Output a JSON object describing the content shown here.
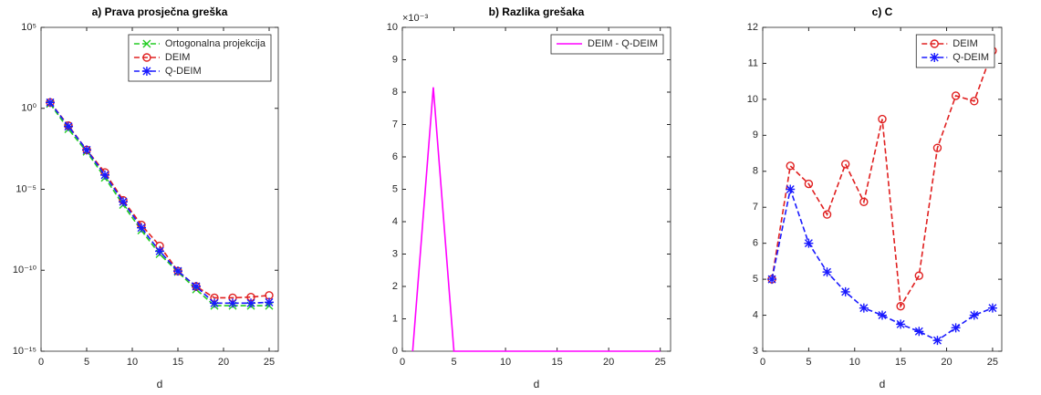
{
  "chart_data": [
    {
      "type": "line",
      "title": "a) Prava prosječna greška",
      "x_label": "d",
      "log_y": true,
      "legend": "upper right",
      "x": [
        1,
        3,
        5,
        7,
        9,
        11,
        13,
        15,
        17,
        19,
        21,
        23,
        25
      ],
      "xlim": [
        0,
        26
      ],
      "xticks": [
        0,
        5,
        10,
        15,
        20,
        25
      ],
      "ylim": [
        1e-15,
        100000.0
      ],
      "yticks": [
        {
          "value": 1e-15,
          "label": "10⁻¹⁵"
        },
        {
          "value": 1e-10,
          "label": "10⁻¹⁰"
        },
        {
          "value": 1e-05,
          "label": "10⁻⁵"
        },
        {
          "value": 1,
          "label": "10⁰"
        },
        {
          "value": 100000.0,
          "label": "10⁵"
        }
      ],
      "series": [
        {
          "name": "Ortogonalna projekcija",
          "color": "#22cc22",
          "marker": "x",
          "dashed": true,
          "values": [
            1.9,
            0.052,
            0.0021,
            5.2e-05,
            1.1e-06,
            2.9e-08,
            1e-09,
            7.9e-11,
            6.6e-12,
            6.5e-13,
            6.5e-13,
            6.5e-13,
            6.5e-13
          ]
        },
        {
          "name": "DEIM",
          "color": "#e02020",
          "marker": "o",
          "dashed": true,
          "values": [
            2.3,
            0.085,
            0.0027,
            0.00011,
            2.1e-06,
            6.3e-08,
            3.2e-09,
            8.9e-11,
            1e-11,
            2e-12,
            2e-12,
            2.2e-12,
            2.8e-12
          ]
        },
        {
          "name": "Q-DEIM",
          "color": "#1a1aff",
          "marker": "*",
          "dashed": true,
          "values": [
            2.3,
            0.076,
            0.0027,
            7.6e-05,
            1.7e-06,
            4.2e-08,
            1.5e-09,
            8.9e-11,
            1e-11,
            9.3e-13,
            9.3e-13,
            9.3e-13,
            1.05e-12
          ]
        }
      ]
    },
    {
      "type": "line",
      "title": "b) Razlika grešaka",
      "x_label": "d",
      "log_y": false,
      "legend": "upper right",
      "y_multiplier": "×10⁻³",
      "x": [
        1,
        3,
        5,
        7,
        9,
        11,
        13,
        15,
        17,
        19,
        21,
        23,
        25
      ],
      "xlim": [
        0,
        26
      ],
      "xticks": [
        0,
        5,
        10,
        15,
        20,
        25
      ],
      "ylim": [
        0,
        0.01
      ],
      "yticks": [
        0,
        {
          "value": 0.001,
          "label": "1"
        },
        {
          "value": 0.002,
          "label": "2"
        },
        {
          "value": 0.003,
          "label": "3"
        },
        {
          "value": 0.004,
          "label": "4"
        },
        {
          "value": 0.005,
          "label": "5"
        },
        {
          "value": 0.006,
          "label": "6"
        },
        {
          "value": 0.007,
          "label": "7"
        },
        {
          "value": 0.008,
          "label": "8"
        },
        {
          "value": 0.009,
          "label": "9"
        },
        {
          "value": 0.01,
          "label": "10"
        }
      ],
      "series": [
        {
          "name": "DEIM - Q-DEIM",
          "color": "#ff00ff",
          "marker": "none",
          "dashed": false,
          "values": [
            0,
            0.00815,
            0,
            0,
            0,
            0,
            0,
            0,
            0,
            0,
            0,
            0,
            0
          ]
        }
      ]
    },
    {
      "type": "line",
      "title": "c) C",
      "x_label": "d",
      "log_y": false,
      "legend": "upper right",
      "x": [
        1,
        3,
        5,
        7,
        9,
        11,
        13,
        15,
        17,
        19,
        21,
        23,
        25
      ],
      "xlim": [
        0,
        26
      ],
      "xticks": [
        0,
        5,
        10,
        15,
        20,
        25
      ],
      "ylim": [
        3,
        12
      ],
      "yticks": [
        3,
        4,
        5,
        6,
        7,
        8,
        9,
        10,
        11,
        12
      ],
      "series": [
        {
          "name": "DEIM",
          "color": "#e02020",
          "marker": "o",
          "dashed": true,
          "values": [
            5.0,
            8.15,
            7.65,
            6.8,
            8.2,
            7.15,
            9.45,
            4.25,
            5.1,
            8.65,
            10.1,
            9.95,
            11.35
          ]
        },
        {
          "name": "Q-DEIM",
          "color": "#1a1aff",
          "marker": "*",
          "dashed": true,
          "values": [
            5.0,
            7.5,
            6.0,
            5.2,
            4.65,
            4.2,
            4.0,
            3.75,
            3.55,
            3.3,
            3.65,
            4.0,
            4.2
          ]
        }
      ]
    }
  ]
}
